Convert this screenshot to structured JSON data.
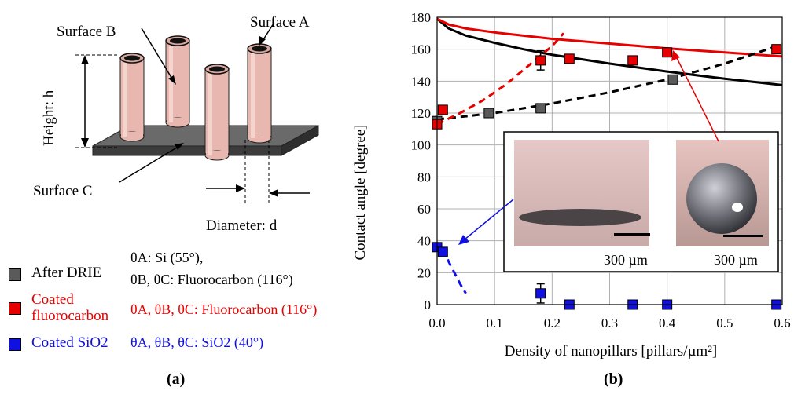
{
  "colors": {
    "gray": "#5a5a5a",
    "red": "#e60000",
    "blue": "#1010e0",
    "pillar": "#e8b8b0",
    "base": "#555555"
  },
  "panel_a": {
    "label": "(a)",
    "surface_a": "Surface A",
    "surface_b": "Surface B",
    "surface_c": "Surface C",
    "height_label": "Height: h",
    "diameter_label": "Diameter: d",
    "legend": [
      {
        "name": "After DRIE",
        "desc": [
          "θA: Si (55°),",
          "θB, θC: Fluorocarbon (116°)"
        ],
        "color": "#5a5a5a",
        "textcolor": "#000000"
      },
      {
        "name": "Coated fluorocarbon",
        "name_lines": [
          "Coated",
          "fluorocarbon"
        ],
        "desc": [
          "θA, θB, θC: Fluorocarbon (116°)"
        ],
        "color": "#e60000",
        "textcolor": "#e60000"
      },
      {
        "name": "Coated SiO2",
        "desc": [
          "θA, θB, θC: SiO2 (40°)"
        ],
        "color": "#1010e0",
        "textcolor": "#1010e0"
      }
    ]
  },
  "chart_data": {
    "type": "scatter",
    "label": "(b)",
    "xlabel": "Density of nanopillars [pillars/µm²]",
    "ylabel": "Contact angle [degree]",
    "xlim": [
      0,
      0.6
    ],
    "ylim": [
      0,
      180
    ],
    "xticks": [
      0.0,
      0.1,
      0.2,
      0.3,
      0.4,
      0.5,
      0.6
    ],
    "xtick_labels": [
      "0.0",
      "0.1",
      "0.2",
      "0.3",
      "0.4",
      "0.5",
      "0.6"
    ],
    "yticks": [
      0,
      20,
      40,
      60,
      80,
      100,
      120,
      140,
      160,
      180
    ],
    "grid": true,
    "series": [
      {
        "color": "#5a5a5a",
        "x": [
          0.0,
          0.09,
          0.18,
          0.41
        ],
        "y": [
          115,
          120,
          123,
          141
        ]
      },
      {
        "color": "#e60000",
        "x": [
          0.0,
          0.01,
          0.18,
          0.23,
          0.34,
          0.4,
          0.59
        ],
        "y": [
          113,
          122,
          153,
          154,
          153,
          158,
          160
        ],
        "error": [
          null,
          null,
          6,
          null,
          null,
          null,
          null
        ]
      },
      {
        "color": "#1010e0",
        "x": [
          0.0,
          0.01,
          0.18,
          0.23,
          0.34,
          0.4,
          0.59
        ],
        "y": [
          36,
          33,
          7,
          0,
          0,
          0,
          0
        ],
        "error": [
          null,
          null,
          6,
          null,
          null,
          null,
          null
        ]
      }
    ],
    "curves": [
      {
        "color": "#000000",
        "dashed": false,
        "x": [
          0.0,
          0.02,
          0.05,
          0.1,
          0.15,
          0.2,
          0.3,
          0.4,
          0.5,
          0.6
        ],
        "y": [
          179,
          173,
          168.5,
          164,
          160,
          156.5,
          151,
          146,
          141.5,
          137.5
        ]
      },
      {
        "color": "#e60000",
        "dashed": false,
        "x": [
          0.0,
          0.02,
          0.05,
          0.1,
          0.15,
          0.2,
          0.3,
          0.4,
          0.5,
          0.6
        ],
        "y": [
          179,
          175.5,
          173,
          170.5,
          168.5,
          166.5,
          163.5,
          160.5,
          158,
          155.5
        ]
      },
      {
        "color": "#000000",
        "dashed": true,
        "x": [
          0.0,
          0.1,
          0.2,
          0.3,
          0.4,
          0.5,
          0.6
        ],
        "y": [
          116,
          120,
          126,
          133,
          141,
          151,
          163
        ]
      },
      {
        "color": "#e60000",
        "dashed": true,
        "x": [
          0.0,
          0.04,
          0.08,
          0.12,
          0.16,
          0.2,
          0.22
        ],
        "y": [
          113,
          120,
          128,
          138,
          150,
          162,
          170
        ]
      },
      {
        "color": "#1010e0",
        "dashed": true,
        "x": [
          0.01,
          0.02,
          0.03,
          0.04,
          0.05
        ],
        "y": [
          35,
          27,
          20,
          13,
          7
        ]
      }
    ],
    "inset": {
      "scale_left": "300 µm",
      "scale_right": "300 µm"
    }
  }
}
